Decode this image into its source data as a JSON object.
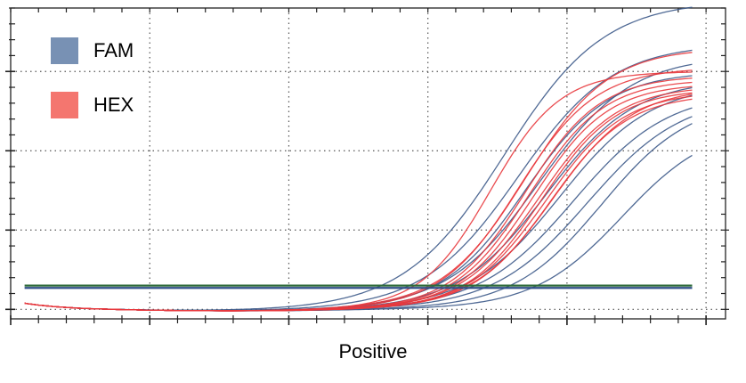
{
  "chart_data": {
    "type": "line",
    "title": "",
    "xlabel": "Positive",
    "ylabel": "",
    "xlim": [
      0,
      51.4
    ],
    "ylim": [
      -0.12,
      3.8
    ],
    "x_major_step": 10,
    "x_minor_per_major": 5,
    "y_major_step": 1,
    "y_minor_per_major": 5,
    "grid": true,
    "grid_style": "dotted",
    "tick_labels_shown": false,
    "legend_placement": "top-left",
    "cycle_range": [
      1,
      49
    ],
    "curve_model": "sigmoid: plateau / (1 + exp(-(cycle - midpoint) / slope))",
    "thresholds": [
      {
        "value": 0.3,
        "color": "#2e6b3a"
      },
      {
        "value": 0.27,
        "color": "#2f4f86"
      }
    ],
    "series": [
      {
        "name": "FAM",
        "color": "#3d5a8a",
        "legend_color": "#7891b4",
        "curves": [
          {
            "plateau": 3.9,
            "midpoint": 35.5,
            "slope": 3.6
          },
          {
            "plateau": 3.35,
            "midpoint": 36.5,
            "slope": 3.4
          },
          {
            "plateau": 3.2,
            "midpoint": 38.0,
            "slope": 3.3
          },
          {
            "plateau": 3.0,
            "midpoint": 37.0,
            "slope": 3.0
          },
          {
            "plateau": 2.9,
            "midpoint": 38.5,
            "slope": 3.2
          },
          {
            "plateau": 2.85,
            "midpoint": 39.5,
            "slope": 3.3
          },
          {
            "plateau": 2.75,
            "midpoint": 40.5,
            "slope": 3.4
          },
          {
            "plateau": 2.7,
            "midpoint": 41.5,
            "slope": 3.4
          },
          {
            "plateau": 2.65,
            "midpoint": 42.5,
            "slope": 3.2
          },
          {
            "plateau": 2.35,
            "midpoint": 44.0,
            "slope": 3.2
          }
        ]
      },
      {
        "name": "HEX",
        "color": "#e8383d",
        "legend_color": "#f4766f",
        "curves": [
          {
            "plateau": 3.0,
            "midpoint": 34.5,
            "slope": 2.5
          },
          {
            "plateau": 3.3,
            "midpoint": 37.0,
            "slope": 3.0
          },
          {
            "plateau": 3.05,
            "midpoint": 36.5,
            "slope": 2.8
          },
          {
            "plateau": 2.95,
            "midpoint": 37.0,
            "slope": 2.7
          },
          {
            "plateau": 2.9,
            "midpoint": 37.3,
            "slope": 2.7
          },
          {
            "plateau": 2.85,
            "midpoint": 37.6,
            "slope": 2.7
          },
          {
            "plateau": 2.82,
            "midpoint": 38.0,
            "slope": 2.8
          },
          {
            "plateau": 2.78,
            "midpoint": 38.2,
            "slope": 2.7
          },
          {
            "plateau": 2.75,
            "midpoint": 38.5,
            "slope": 2.8
          },
          {
            "plateau": 2.72,
            "midpoint": 38.8,
            "slope": 2.8
          },
          {
            "plateau": 2.8,
            "midpoint": 39.0,
            "slope": 2.9
          }
        ]
      }
    ]
  }
}
